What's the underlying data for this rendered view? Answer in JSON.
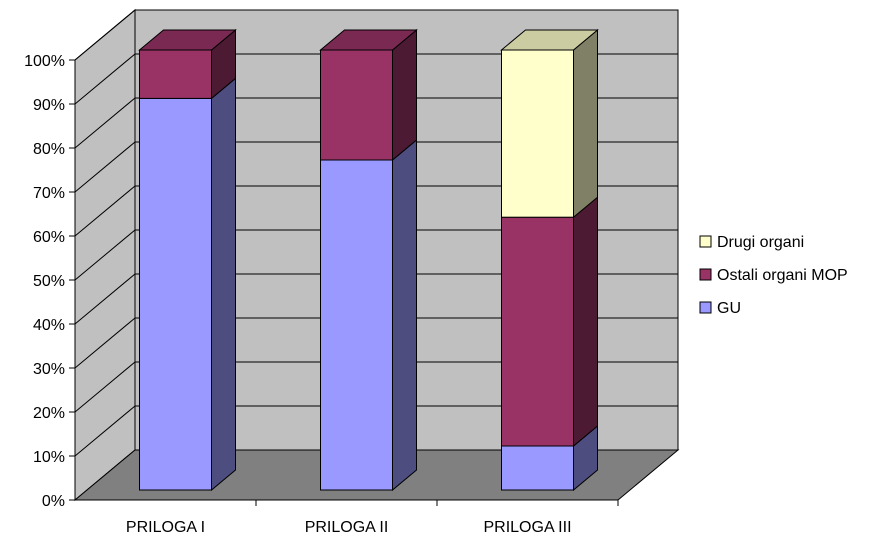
{
  "chart_data": {
    "type": "bar",
    "stacked": "percent",
    "style": "3d",
    "categories": [
      "PRILOGA I",
      "PRILOGA II",
      "PRILOGA III"
    ],
    "series": [
      {
        "name": "GU",
        "values": [
          89,
          75,
          10
        ],
        "color": "#9999ff"
      },
      {
        "name": "Ostali organi MOP",
        "values": [
          11,
          25,
          52
        ],
        "color": "#993366"
      },
      {
        "name": "Drugi organi",
        "values": [
          0,
          0,
          38
        ],
        "color": "#ffffcc"
      }
    ],
    "y_ticks": [
      "0%",
      "10%",
      "20%",
      "30%",
      "40%",
      "50%",
      "60%",
      "70%",
      "80%",
      "90%",
      "100%"
    ],
    "ylim": [
      0,
      100
    ],
    "grid": true,
    "legend_position": "right",
    "legend_order": [
      "Drugi organi",
      "Ostali organi MOP",
      "GU"
    ],
    "colors": {
      "wall": "#c0c0c0",
      "floor": "#808080",
      "grid": "#000000"
    }
  }
}
